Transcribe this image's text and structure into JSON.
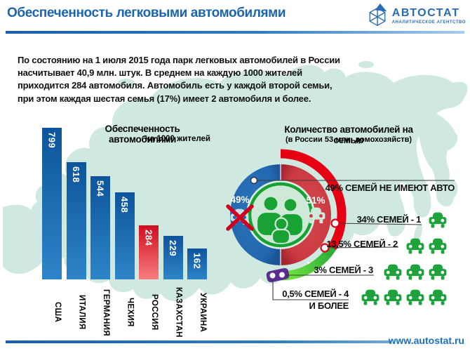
{
  "header": {
    "title": "Обеспеченность легковыми автомобилями",
    "logo_name": "АВТОСТАТ",
    "logo_tagline": "АНАЛИТИЧЕСКОЕ АГЕНТСТВО"
  },
  "intro": {
    "text": "По состоянию на 1 июля 2015 года парк легковых автомобилей в России насчитывает 40,9 млн. штук.  В среднем на каждую 1000 жителей приходится 284 автомобиля.  Автомобиль есть у каждой второй семьи, при этом каждая шестая семья (17%) имеет 2 автомобиля и более."
  },
  "footer": {
    "url": "www.autostat.ru"
  },
  "colors": {
    "accent_blue": "#1b65af",
    "bar_blue_top": "#0d549c",
    "bar_blue_bottom": "#2e84c8",
    "bar_red": "#d00d20",
    "map_mint": "#cfe9e1",
    "arc_red": "#e60013",
    "arc_green": "#3fae3f",
    "badge_purple": "#5c2b8e",
    "car_green": "#1ea23c"
  },
  "chart_data": [
    {
      "type": "bar",
      "title": "Обеспеченность автомобилями",
      "subtitle": "на 1000 жителей",
      "categories": [
        "США",
        "ИТАЛИЯ",
        "ГЕРМАНИЯ",
        "ЧЕХИЯ",
        "РОССИЯ",
        "КАЗАХСТАН",
        "УКРАИНА"
      ],
      "values": [
        799,
        618,
        544,
        458,
        284,
        229,
        162
      ],
      "highlight_category": "РОССИЯ",
      "value_labels_inside": true,
      "axes": "none"
    },
    {
      "type": "pie",
      "title": "Количество автомобилей на семью",
      "subtitle": "(в России 53 млн. домохозяйств)",
      "inner_halves": [
        {
          "label": "49%",
          "value": 49,
          "meaning": "семей не имеют авто",
          "color": "blue"
        },
        {
          "label": "51%",
          "value": 51,
          "meaning": "семей имеют авто",
          "color": "red"
        }
      ],
      "outer_arc_segments": [
        {
          "value": 34,
          "color": "red"
        },
        {
          "value": 16.5,
          "color": "green"
        },
        {
          "value": 0.5,
          "color": "purple"
        }
      ],
      "legend": [
        {
          "label": "49% СЕМЕЙ НЕ ИМЕЮТ АВТО",
          "pct": 49,
          "cars": 0
        },
        {
          "label": "34% СЕМЕЙ - 1",
          "pct": 34,
          "cars": 1
        },
        {
          "label": "13,5% СЕМЕЙ - 2",
          "pct": 13.5,
          "cars": 2
        },
        {
          "label": "3% СЕМЕЙ - 3",
          "pct": 3,
          "cars": 3
        },
        {
          "label": "0,5% СЕМЕЙ - 4",
          "label2": "И БОЛЕЕ",
          "pct": 0.5,
          "cars": 4
        }
      ]
    }
  ]
}
